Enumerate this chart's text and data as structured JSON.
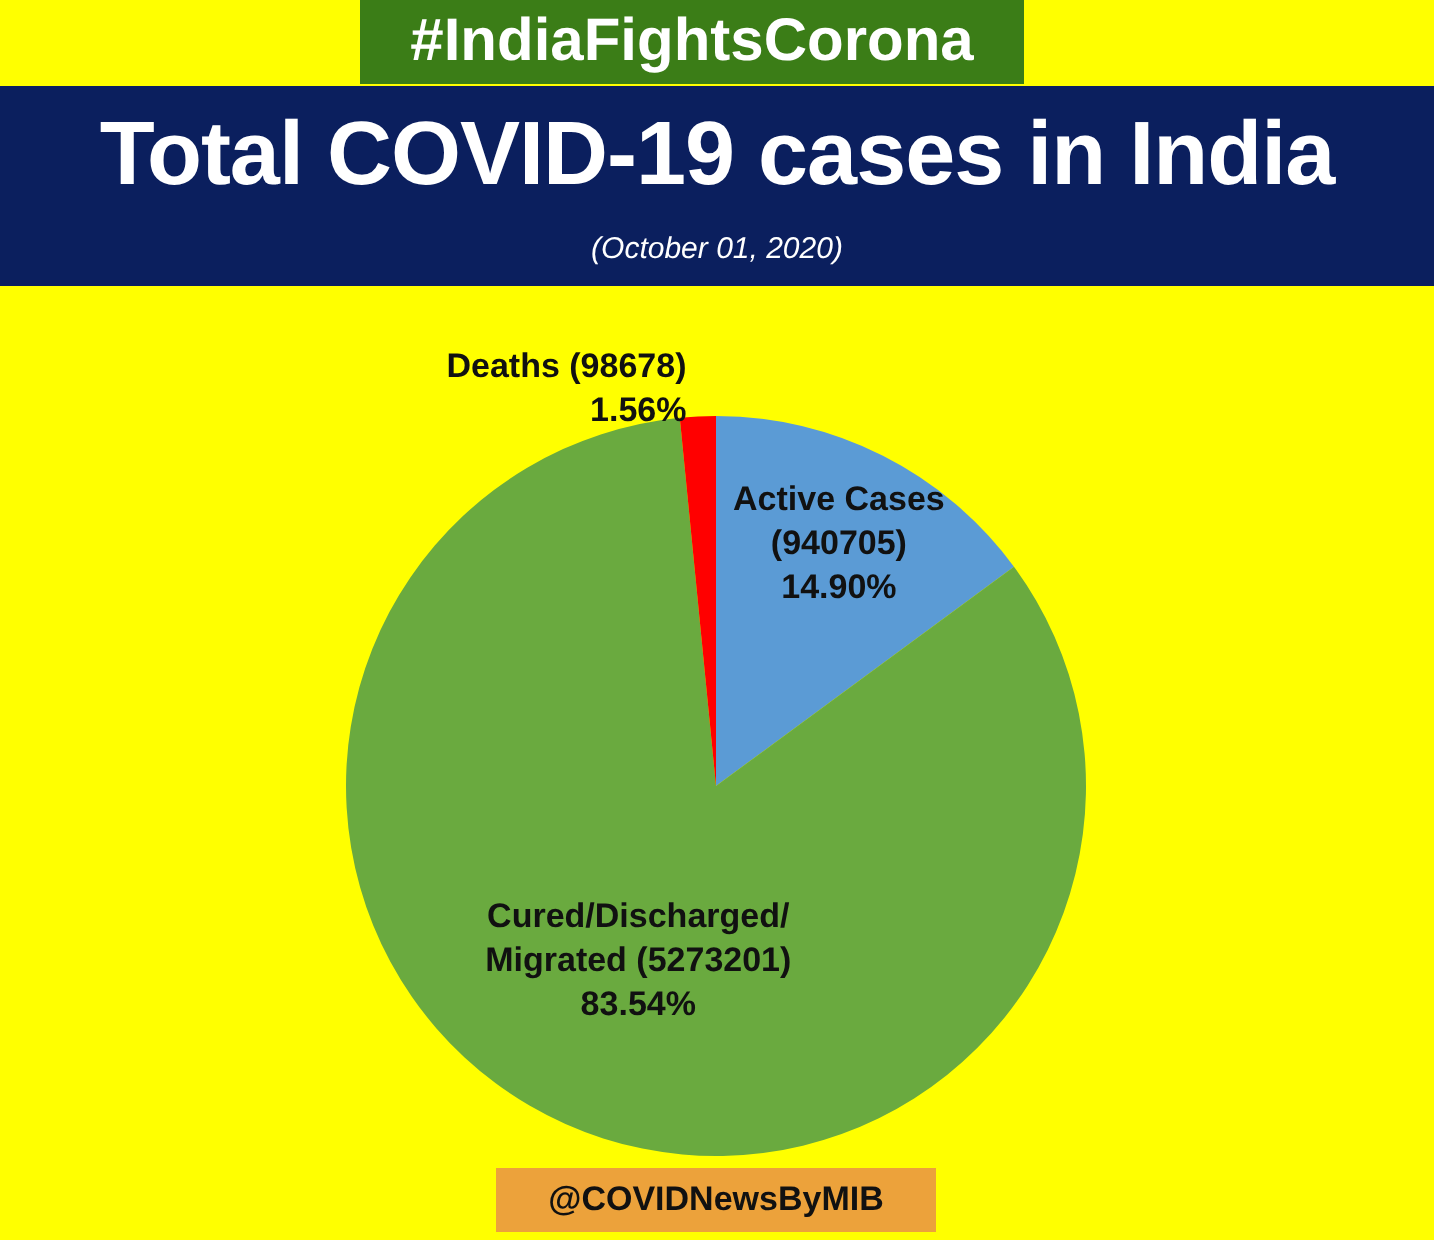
{
  "chart_data": {
    "type": "pie",
    "title": "Total COVID-19 cases in India",
    "subtitle": "(October 01, 2020)",
    "categories": [
      "Active Cases (940705)",
      "Cured/Discharged/Migrated (5273201)",
      "Deaths (98678)"
    ],
    "values": [
      14.9,
      83.54,
      1.56
    ],
    "colors": [
      "#5b9bd5",
      "#6aaa3f",
      "#ff0000"
    ],
    "value_labels": [
      "14.90%",
      "83.54%",
      "1.56%"
    ],
    "annotations": [
      "#IndiaFightsCorona",
      "@COVIDNewsByMIB"
    ]
  }
}
